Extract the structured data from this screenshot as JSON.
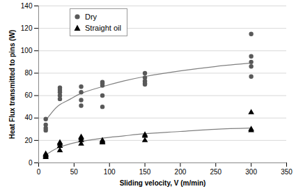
{
  "chart_data": {
    "type": "scatter",
    "x_label": "Sliding velocity, V (m/min)",
    "y_label": "Heat Flux transmitted to pins (W)",
    "xlim": [
      0,
      350
    ],
    "xticks": [
      0,
      50,
      100,
      150,
      200,
      250,
      300,
      350
    ],
    "ylim": [
      0,
      140
    ],
    "yticks": [
      0,
      20,
      40,
      60,
      80,
      100,
      120,
      140
    ],
    "grid": true,
    "legend": "upper left",
    "series": [
      {
        "name": "Dry",
        "color": "#595959",
        "marker": "circle",
        "x": [
          10,
          10,
          10,
          10,
          30,
          30,
          30,
          30,
          30,
          60,
          60,
          60,
          60,
          90,
          90,
          90,
          90,
          90,
          150,
          150,
          150,
          150,
          150,
          300,
          300,
          300,
          300,
          300
        ],
        "values": [
          39,
          34,
          31,
          29,
          67,
          65,
          63,
          60,
          57,
          68,
          63,
          56,
          51,
          72,
          71,
          69,
          60,
          50,
          80,
          76,
          73,
          71,
          70,
          115,
          95,
          90,
          86,
          77
        ],
        "trend": {
          "x": [
            10,
            20,
            30,
            45,
            60,
            90,
            120,
            150,
            200,
            250,
            300
          ],
          "values": [
            38,
            46,
            52,
            57,
            62,
            68,
            73,
            77,
            82,
            86,
            89
          ]
        }
      },
      {
        "name": "Straight oil",
        "color": "#000000",
        "marker": "triangle",
        "x": [
          10,
          10,
          10,
          10,
          30,
          30,
          30,
          30,
          60,
          60,
          60,
          60,
          90,
          90,
          90,
          150,
          150,
          150,
          300,
          300,
          300
        ],
        "values": [
          8,
          7,
          6,
          5,
          18,
          17,
          15,
          11,
          23,
          22,
          20,
          17,
          20,
          19,
          18,
          25,
          24,
          20,
          45,
          30,
          29
        ],
        "trend": {
          "x": [
            10,
            20,
            30,
            45,
            60,
            90,
            120,
            150,
            200,
            250,
            300
          ],
          "values": [
            7,
            11,
            14,
            17,
            19,
            22,
            24,
            26,
            28,
            30,
            31
          ]
        }
      }
    ]
  }
}
